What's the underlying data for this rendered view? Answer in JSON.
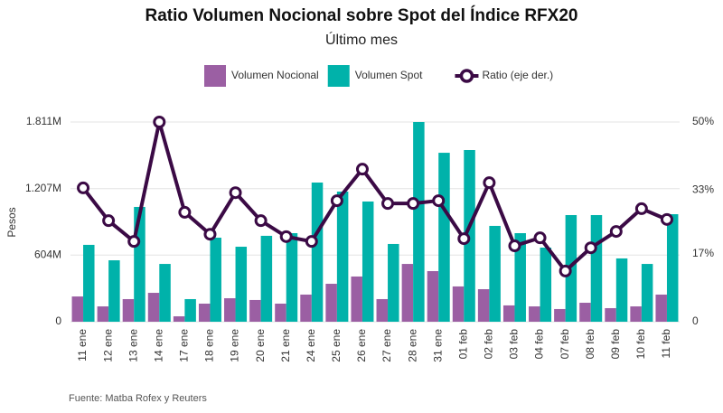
{
  "chart_data": {
    "type": "bar",
    "title": "Ratio Volumen Nocional sobre Spot del Índice RFX20",
    "subtitle": "Último mes",
    "ylabel": "Pesos",
    "source": "Fuente: Matba Rofex y Reuters",
    "categories": [
      "11 ene",
      "12 ene",
      "13 ene",
      "14 ene",
      "17 ene",
      "18 ene",
      "19 ene",
      "20 ene",
      "21 ene",
      "24 ene",
      "25 ene",
      "26 ene",
      "27 ene",
      "28 ene",
      "31 ene",
      "01 feb",
      "02 feb",
      "03 feb",
      "04 feb",
      "07 feb",
      "08 feb",
      "09 feb",
      "10 feb",
      "11 feb"
    ],
    "series": [
      {
        "name": "Volumen Nocional",
        "color": "#9b5fa3",
        "values": [
          229,
          139,
          205,
          262,
          49,
          164,
          213,
          197,
          164,
          246,
          344,
          410,
          205,
          524,
          459,
          320,
          295,
          148,
          139,
          115,
          172,
          123,
          139,
          246
        ]
      },
      {
        "name": "Volumen Spot",
        "color": "#00b2aa",
        "values": [
          697,
          557,
          1041,
          524,
          205,
          762,
          680,
          779,
          803,
          1262,
          1180,
          1090,
          705,
          1811,
          1532,
          1557,
          869,
          803,
          672,
          967,
          967,
          574,
          524,
          975
        ]
      },
      {
        "name": "Ratio (eje der.)",
        "color": "#3b0a45",
        "type": "line",
        "axis": "y2",
        "values": [
          33.5,
          25.3,
          20.1,
          50,
          27.4,
          21.9,
          32.3,
          25.3,
          21.3,
          20.1,
          30.3,
          38.2,
          29.6,
          29.6,
          30.3,
          20.8,
          34.8,
          19.0,
          21.0,
          12.7,
          18.5,
          22.6,
          28.3,
          25.6
        ]
      }
    ],
    "ylim": [
      0,
      1811
    ],
    "yticks": [
      0,
      {
        "value": 604,
        "label": "604M"
      },
      {
        "value": 1207,
        "label": "1.207M"
      },
      {
        "value": 1811,
        "label": "1.811M"
      }
    ],
    "y2lim": [
      0,
      50
    ],
    "y2ticks": [
      0,
      {
        "value": 17,
        "label": "17%"
      },
      {
        "value": 33,
        "label": "33%"
      },
      {
        "value": 50,
        "label": "50%"
      }
    ],
    "grid": true
  }
}
